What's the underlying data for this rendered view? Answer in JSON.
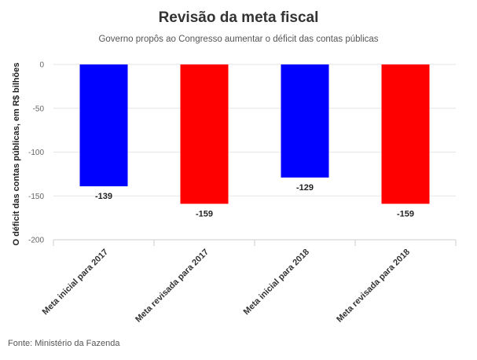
{
  "chart_data": {
    "type": "bar",
    "title": "Revisão da meta fiscal",
    "subtitle": "Governo propôs ao Congresso aumentar o déficit das contas públicas",
    "xlabel": "",
    "ylabel": "O déficit das contas públicas, em R$ bilhões",
    "categories": [
      "Meta inicial para 2017",
      "Meta revisada para 2017",
      "Meta inicial para 2018",
      "Meta revisada para 2018"
    ],
    "values": [
      -139,
      -159,
      -129,
      -159
    ],
    "data_labels": [
      "-139",
      "-159",
      "-129",
      "-159"
    ],
    "bar_colors": [
      "#0000ff",
      "#ff0000",
      "#0000ff",
      "#ff0000"
    ],
    "ylim": [
      -200,
      0
    ],
    "yticks": [
      0,
      -50,
      -100,
      -150,
      -200
    ],
    "ytick_labels": [
      "0",
      "-50",
      "-100",
      "-150",
      "-200"
    ],
    "grid": true,
    "source": "Fonte: Ministério da Fazenda"
  }
}
